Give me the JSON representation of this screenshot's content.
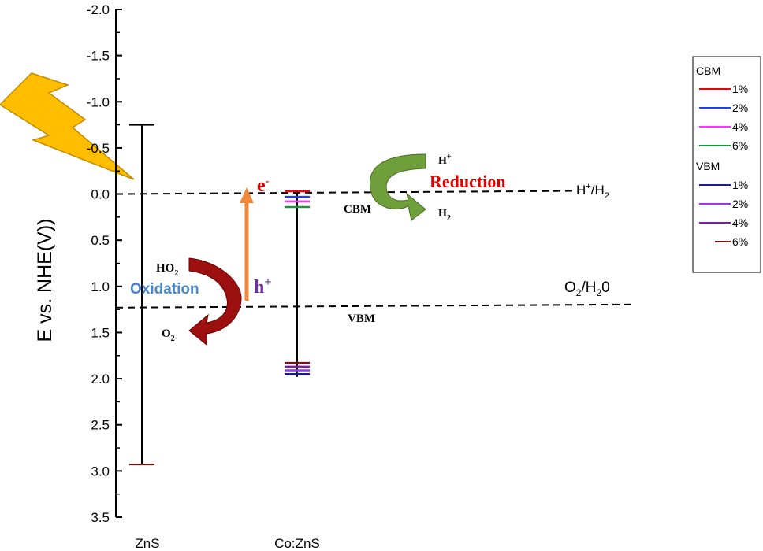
{
  "chart_data": {
    "type": "scatter",
    "ylabel": "E vs. NHE(V))",
    "ylim": [
      -2.0,
      3.5
    ],
    "y_inverted": true,
    "y_ticks": [
      "-2.0",
      "-1.5",
      "-1.0",
      "-0.5",
      "0.0",
      "0.5",
      "1.0",
      "1.5",
      "2.0",
      "2.5",
      "3.0",
      "3.5"
    ],
    "categories": [
      "ZnS",
      "Co:ZnS"
    ],
    "bands": [
      {
        "category": "ZnS",
        "cbm": -0.75,
        "vbm": 2.93
      },
      {
        "category": "Co:ZnS",
        "cbm": -0.03,
        "vbm": 1.98
      }
    ],
    "cbm_series": [
      {
        "name": "1%",
        "color": "#e8000b",
        "value": -0.03
      },
      {
        "name": "2%",
        "color": "#1f3bff",
        "value": 0.03
      },
      {
        "name": "4%",
        "color": "#ff33ff",
        "value": 0.08
      },
      {
        "name": "6%",
        "color": "#1a9641",
        "value": 0.14
      }
    ],
    "vbm_series": [
      {
        "name": "1%",
        "color": "#1a1a9c",
        "value": 1.95
      },
      {
        "name": "2%",
        "color": "#9b30ff",
        "value": 1.91
      },
      {
        "name": "4%",
        "color": "#7a1fa2",
        "value": 1.87
      },
      {
        "name": "6%",
        "color": "#7b1010",
        "value": 1.83
      }
    ],
    "reference_lines": [
      {
        "label_main": "H",
        "label_sup": "+",
        "label_sep": "/H",
        "label_sub": "2",
        "value": 0.0
      },
      {
        "label_main": "O",
        "label_sub": "2",
        "label_sep": "/H",
        "label_sub2": "2",
        "label_tail": "0",
        "value": 1.23
      }
    ],
    "legend": {
      "position": "top-right",
      "cbm_title": "CBM",
      "vbm_title": "VBM"
    },
    "annotations": {
      "electron_main": "e",
      "electron_sup": "-",
      "hole_main": "h",
      "hole_sup": "+",
      "reduction": "Reduction",
      "oxidation": "Oxidation",
      "cbm_label": "CBM",
      "vbm_label": "VBM",
      "h_plus_main": "H",
      "h_plus_sup": "+",
      "h2_main": "H",
      "h2_sub": "2",
      "ho2_main": "HO",
      "ho2_sub": "2",
      "o2_main": "O",
      "o2_sub": "2"
    }
  }
}
